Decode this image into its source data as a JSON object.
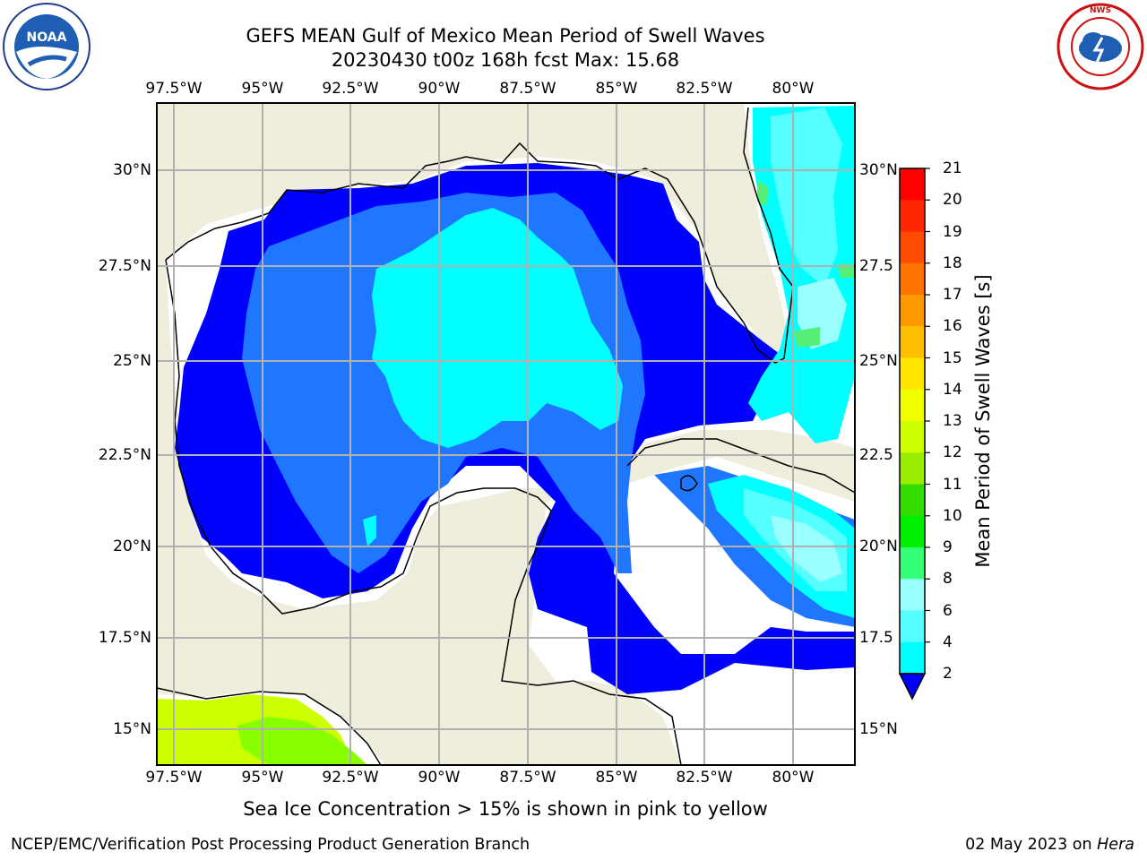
{
  "title": {
    "line1": "GEFS MEAN Gulf of Mexico Mean Period of Swell Waves",
    "line2": "20230430 t00z 168h fcst   Max: 15.68"
  },
  "logos": {
    "noaa": {
      "text": "NOAA",
      "icon": "noaa-logo"
    },
    "nws": {
      "text": "NATIONAL WEATHER SERVICE",
      "icon": "nws-logo"
    }
  },
  "map": {
    "lon_ticks": [
      "97.5°W",
      "95°W",
      "92.5°W",
      "90°W",
      "87.5°W",
      "85°W",
      "82.5°W",
      "80°W"
    ],
    "lat_ticks_left": [
      "30°N",
      "27.5°N",
      "25°N",
      "22.5°N",
      "20°N",
      "17.5°N",
      "15°N"
    ],
    "lat_ticks_right": [
      "30°N",
      "27.5",
      "25°N",
      "22.5",
      "20°N",
      "17.5",
      "15°N"
    ],
    "colors": {
      "land": "#efeedc",
      "level_2_4": "#1f77ff",
      "level_below_2": "#0000ff",
      "level_4_6": "#00ffff",
      "level_6_8": "#44ffff",
      "level_8_9": "#99ffff",
      "level_9_10": "#55ee77",
      "level_12_13": "#ccff00",
      "level_13_14": "#99ff00",
      "grid": "#b0b0b0"
    }
  },
  "colorbar": {
    "label": "Mean Period of Swell Waves [s]",
    "ticks": [
      "21",
      "20",
      "19",
      "18",
      "17",
      "16",
      "15",
      "14",
      "13",
      "12",
      "11",
      "10",
      "9",
      "8",
      "6",
      "4",
      "2"
    ],
    "colors": [
      "#ff0000",
      "#ff2600",
      "#ff4c00",
      "#ff7300",
      "#ff9900",
      "#ffbf00",
      "#ffe600",
      "#f2ff00",
      "#ccff00",
      "#99ee00",
      "#33dd00",
      "#00ee00",
      "#33ff77",
      "#99ffff",
      "#55ffff",
      "#00ffff",
      "#1f77ff"
    ],
    "extend_color": "#0000ff"
  },
  "bottom_note": "Sea Ice Concentration > 15% is shown in pink to yellow",
  "footer": {
    "left": "NCEP/EMC/Verification Post Processing Product Generation Branch",
    "right_date": "02 May 2023 on ",
    "right_machine": "Hera"
  }
}
